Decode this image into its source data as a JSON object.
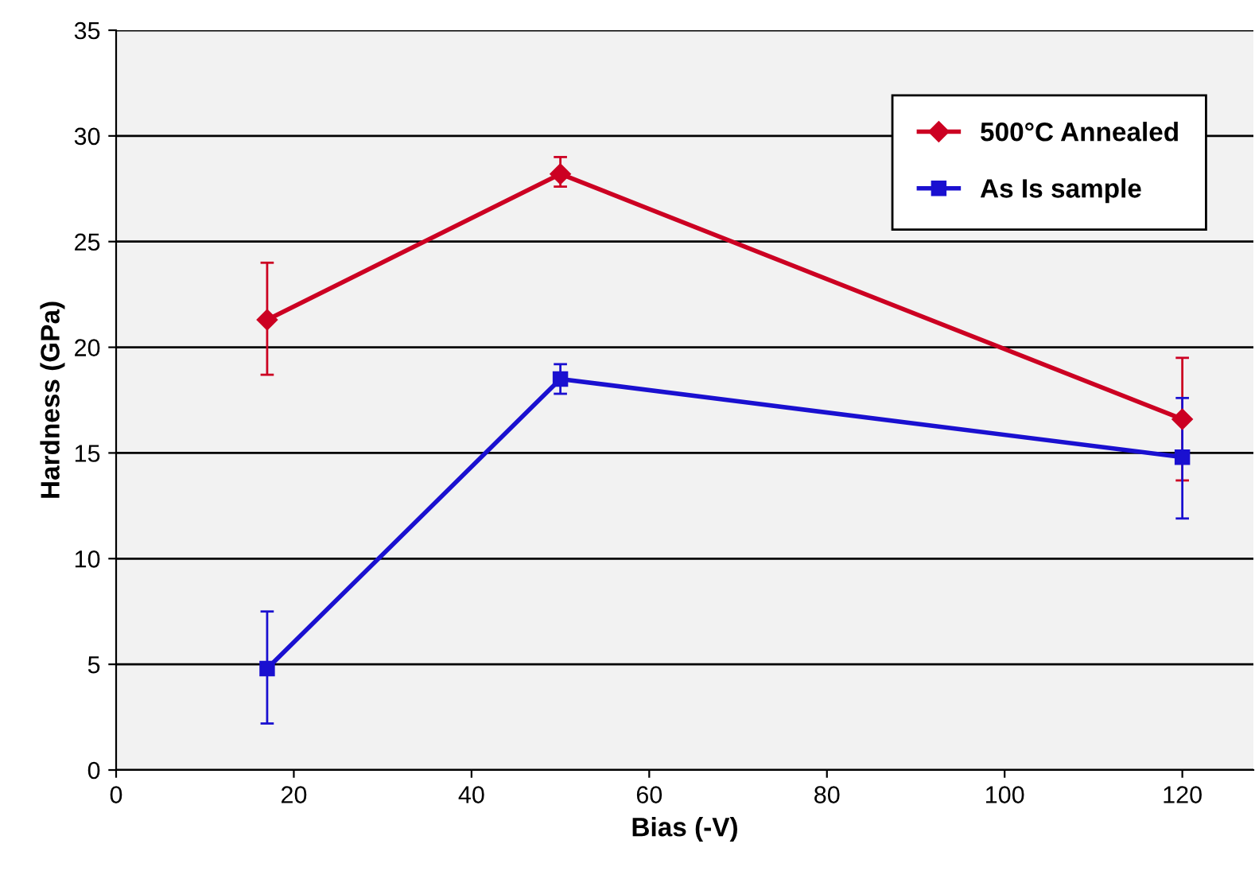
{
  "chart_data": {
    "type": "line",
    "xlabel": "Bias (-V)",
    "ylabel": "Hardness (GPa)",
    "x": [
      17,
      50,
      120
    ],
    "series": [
      {
        "name": "500°C Annealed",
        "color": "#cc0022",
        "marker": "diamond",
        "values": [
          21.3,
          28.2,
          16.6
        ],
        "errors": [
          [
            18.7,
            24.0
          ],
          [
            27.6,
            29.0
          ],
          [
            13.7,
            19.5
          ]
        ]
      },
      {
        "name": "As Is sample",
        "color": "#1a10d0",
        "marker": "square",
        "values": [
          4.8,
          18.5,
          14.8
        ],
        "errors": [
          [
            2.2,
            7.5
          ],
          [
            17.8,
            19.2
          ],
          [
            11.9,
            17.6
          ]
        ]
      }
    ],
    "xlim": [
      0,
      128
    ],
    "xticks": [
      0,
      20,
      40,
      60,
      80,
      100,
      120
    ],
    "ylim": [
      0,
      35
    ],
    "yticks": [
      0,
      5,
      10,
      15,
      20,
      25,
      30,
      35
    ],
    "grid": "y",
    "legend": "top right",
    "line_style": "solid"
  }
}
